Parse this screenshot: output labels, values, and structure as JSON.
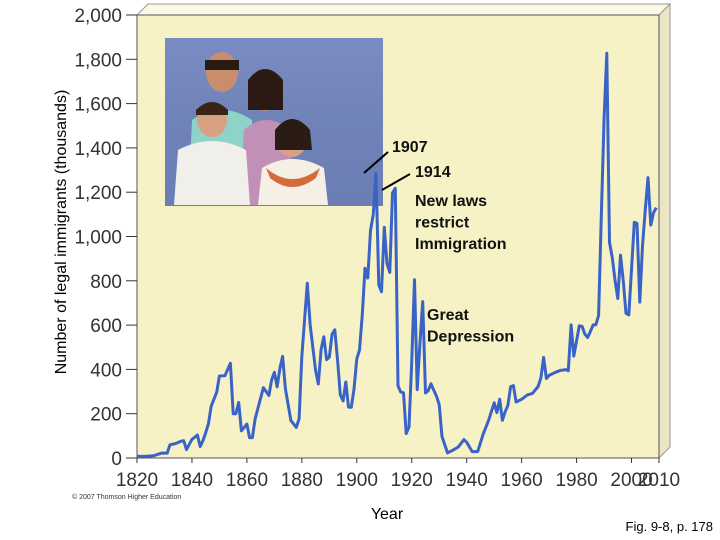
{
  "chart_data": {
    "type": "line",
    "title": "",
    "xlabel": "Year",
    "ylabel": "Number of legal immigrants (thousands)",
    "xlim": [
      1820,
      2010
    ],
    "ylim": [
      0,
      2000
    ],
    "x_ticks": [
      "1820",
      "1840",
      "1860",
      "1880",
      "1900",
      "1920",
      "1940",
      "1960",
      "1980",
      "2000",
      "2010"
    ],
    "y_ticks": [
      "0",
      "200",
      "400",
      "600",
      "800",
      "1,000",
      "1,200",
      "1,400",
      "1,600",
      "1,800",
      "2,000"
    ],
    "grid": false,
    "annotations": [
      {
        "text": "1907"
      },
      {
        "text": "1914"
      },
      {
        "text": "New laws\nrestrict\nImmigration"
      },
      {
        "text": "Great\nDepression"
      }
    ],
    "series": [
      {
        "color": "#3a63c8",
        "points": [
          [
            1820,
            8
          ],
          [
            1823,
            7
          ],
          [
            1826,
            10
          ],
          [
            1829,
            22
          ],
          [
            1831,
            22
          ],
          [
            1832,
            60
          ],
          [
            1834,
            65
          ],
          [
            1836,
            76
          ],
          [
            1837,
            78
          ],
          [
            1838,
            38
          ],
          [
            1840,
            84
          ],
          [
            1842,
            104
          ],
          [
            1843,
            52
          ],
          [
            1844,
            78
          ],
          [
            1845,
            114
          ],
          [
            1846,
            154
          ],
          [
            1847,
            234
          ],
          [
            1849,
            297
          ],
          [
            1850,
            370
          ],
          [
            1852,
            371
          ],
          [
            1854,
            428
          ],
          [
            1855,
            200
          ],
          [
            1856,
            200
          ],
          [
            1857,
            251
          ],
          [
            1858,
            123
          ],
          [
            1860,
            153
          ],
          [
            1861,
            91
          ],
          [
            1862,
            92
          ],
          [
            1863,
            176
          ],
          [
            1866,
            318
          ],
          [
            1868,
            282
          ],
          [
            1869,
            352
          ],
          [
            1870,
            387
          ],
          [
            1871,
            321
          ],
          [
            1872,
            404
          ],
          [
            1873,
            459
          ],
          [
            1874,
            313
          ],
          [
            1876,
            169
          ],
          [
            1878,
            138
          ],
          [
            1879,
            177
          ],
          [
            1880,
            457
          ],
          [
            1882,
            789
          ],
          [
            1883,
            603
          ],
          [
            1885,
            395
          ],
          [
            1886,
            334
          ],
          [
            1887,
            490
          ],
          [
            1888,
            547
          ],
          [
            1889,
            444
          ],
          [
            1890,
            455
          ],
          [
            1891,
            560
          ],
          [
            1892,
            579
          ],
          [
            1893,
            440
          ],
          [
            1894,
            285
          ],
          [
            1895,
            258
          ],
          [
            1896,
            343
          ],
          [
            1897,
            230
          ],
          [
            1898,
            229
          ],
          [
            1899,
            311
          ],
          [
            1900,
            448
          ],
          [
            1901,
            487
          ],
          [
            1902,
            648
          ],
          [
            1903,
            857
          ],
          [
            1904,
            812
          ],
          [
            1905,
            1026
          ],
          [
            1906,
            1100
          ],
          [
            1907,
            1285
          ],
          [
            1908,
            782
          ],
          [
            1909,
            751
          ],
          [
            1910,
            1041
          ],
          [
            1911,
            878
          ],
          [
            1912,
            838
          ],
          [
            1913,
            1197
          ],
          [
            1914,
            1218
          ],
          [
            1915,
            326
          ],
          [
            1916,
            298
          ],
          [
            1917,
            295
          ],
          [
            1918,
            110
          ],
          [
            1919,
            141
          ],
          [
            1920,
            430
          ],
          [
            1921,
            805
          ],
          [
            1922,
            309
          ],
          [
            1923,
            522
          ],
          [
            1924,
            706
          ],
          [
            1925,
            294
          ],
          [
            1926,
            304
          ],
          [
            1927,
            335
          ],
          [
            1928,
            307
          ],
          [
            1929,
            279
          ],
          [
            1930,
            241
          ],
          [
            1931,
            97
          ],
          [
            1933,
            23
          ],
          [
            1935,
            35
          ],
          [
            1937,
            50
          ],
          [
            1939,
            83
          ],
          [
            1940,
            71
          ],
          [
            1942,
            29
          ],
          [
            1944,
            29
          ],
          [
            1946,
            108
          ],
          [
            1948,
            171
          ],
          [
            1950,
            249
          ],
          [
            1951,
            205
          ],
          [
            1952,
            265
          ],
          [
            1953,
            170
          ],
          [
            1954,
            208
          ],
          [
            1955,
            238
          ],
          [
            1956,
            322
          ],
          [
            1957,
            327
          ],
          [
            1958,
            253
          ],
          [
            1960,
            265
          ],
          [
            1962,
            284
          ],
          [
            1964,
            292
          ],
          [
            1966,
            323
          ],
          [
            1967,
            362
          ],
          [
            1968,
            454
          ],
          [
            1969,
            359
          ],
          [
            1970,
            373
          ],
          [
            1972,
            385
          ],
          [
            1974,
            395
          ],
          [
            1976,
            399
          ],
          [
            1977,
            394
          ],
          [
            1978,
            601
          ],
          [
            1979,
            460
          ],
          [
            1980,
            530
          ],
          [
            1981,
            597
          ],
          [
            1982,
            594
          ],
          [
            1983,
            560
          ],
          [
            1984,
            544
          ],
          [
            1985,
            570
          ],
          [
            1986,
            601
          ],
          [
            1987,
            601
          ],
          [
            1988,
            643
          ],
          [
            1989,
            1091
          ],
          [
            1990,
            1536
          ],
          [
            1991,
            1827
          ],
          [
            1992,
            974
          ],
          [
            1993,
            904
          ],
          [
            1994,
            804
          ],
          [
            1995,
            720
          ],
          [
            1996,
            916
          ],
          [
            1997,
            798
          ],
          [
            1998,
            653
          ],
          [
            1999,
            646
          ],
          [
            2000,
            850
          ],
          [
            2001,
            1064
          ],
          [
            2002,
            1059
          ],
          [
            2003,
            704
          ],
          [
            2004,
            958
          ],
          [
            2005,
            1122
          ],
          [
            2006,
            1266
          ],
          [
            2007,
            1052
          ],
          [
            2008,
            1107
          ],
          [
            2009,
            1130
          ]
        ]
      }
    ]
  },
  "credit": "© 2007 Thomson Higher Education",
  "caption": "Fig. 9-8, p. 178"
}
